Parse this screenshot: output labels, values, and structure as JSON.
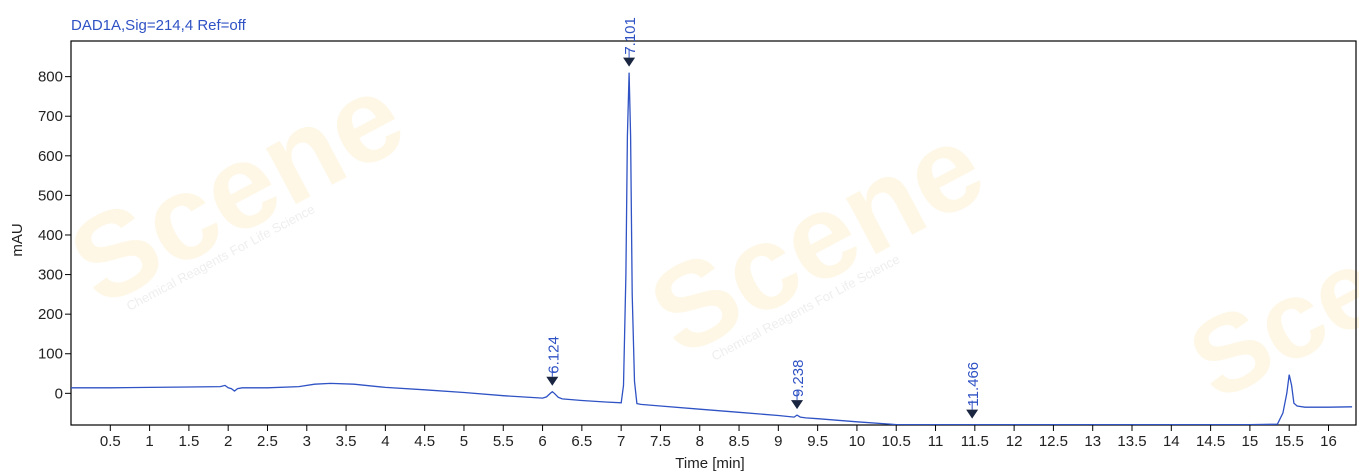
{
  "watermark": {
    "brand": "Scene",
    "tagline": "Chemical Reagents For Life Science"
  },
  "chart_data": {
    "type": "line",
    "title": "DAD1A,Sig=214,4  Ref=off",
    "xlabel": "Time [min]",
    "ylabel": "mAU",
    "xlim": [
      0,
      16.35
    ],
    "ylim": [
      -80,
      890
    ],
    "xticks": [
      0.5,
      1,
      1.5,
      2,
      2.5,
      3,
      3.5,
      4,
      4.5,
      5,
      5.5,
      6,
      6.5,
      7,
      7.5,
      8,
      8.5,
      9,
      9.5,
      10,
      10.5,
      11,
      11.5,
      12,
      12.5,
      13,
      13.5,
      14,
      14.5,
      15,
      15.5,
      16
    ],
    "yticks": [
      0,
      100,
      200,
      300,
      400,
      500,
      600,
      700,
      800
    ],
    "grid": false,
    "line_color": "#2f52c4",
    "series": [
      {
        "x": [
          0,
          0.5,
          1,
          1.5,
          1.9,
          1.96,
          2.0,
          2.04,
          2.08,
          2.12,
          2.18,
          2.5,
          2.9,
          3.1,
          3.3,
          3.6,
          4.0,
          4.5,
          5.0,
          5.5,
          6.0,
          6.05,
          6.1,
          6.124,
          6.15,
          6.2,
          6.25,
          6.5,
          6.8,
          7.0,
          7.03,
          7.06,
          7.08,
          7.101,
          7.12,
          7.14,
          7.17,
          7.2,
          7.25,
          7.5,
          8.0,
          8.5,
          9.0,
          9.2,
          9.238,
          9.28,
          9.35,
          9.5,
          10.0,
          10.5,
          11.0,
          11.466,
          12.0,
          13.0,
          14.0,
          15.0,
          15.35,
          15.42,
          15.47,
          15.5,
          15.53,
          15.56,
          15.6,
          15.7,
          16.0,
          16.3
        ],
        "y": [
          14,
          14,
          15,
          16,
          17,
          20,
          14,
          12,
          6,
          12,
          14,
          14,
          17,
          23,
          25,
          23,
          15,
          9,
          2,
          -6,
          -12,
          -9,
          0,
          4,
          0,
          -10,
          -14,
          -18,
          -22,
          -24,
          20,
          300,
          650,
          810,
          650,
          250,
          30,
          -26,
          -28,
          -32,
          -40,
          -48,
          -56,
          -60,
          -55,
          -60,
          -62,
          -64,
          -72,
          -79,
          -79,
          -79,
          -79,
          -79,
          -79,
          -79,
          -78,
          -50,
          0,
          47,
          20,
          -25,
          -32,
          -35,
          -35,
          -34
        ]
      }
    ],
    "peaks": [
      {
        "x": 6.124,
        "y": 4,
        "label": "6.124"
      },
      {
        "x": 7.101,
        "y": 810,
        "label": "7.101"
      },
      {
        "x": 9.238,
        "y": -55,
        "label": "9.238"
      },
      {
        "x": 11.466,
        "y": -79,
        "label": "11.466"
      }
    ]
  }
}
